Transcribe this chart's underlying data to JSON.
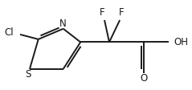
{
  "bg_color": "#ffffff",
  "line_color": "#1a1a1a",
  "text_color": "#1a1a1a",
  "line_width": 1.4,
  "font_size": 8.5,
  "figsize": [
    2.39,
    1.12
  ],
  "dpi": 100,
  "xlim": [
    0,
    10
  ],
  "ylim": [
    0,
    4.7
  ]
}
